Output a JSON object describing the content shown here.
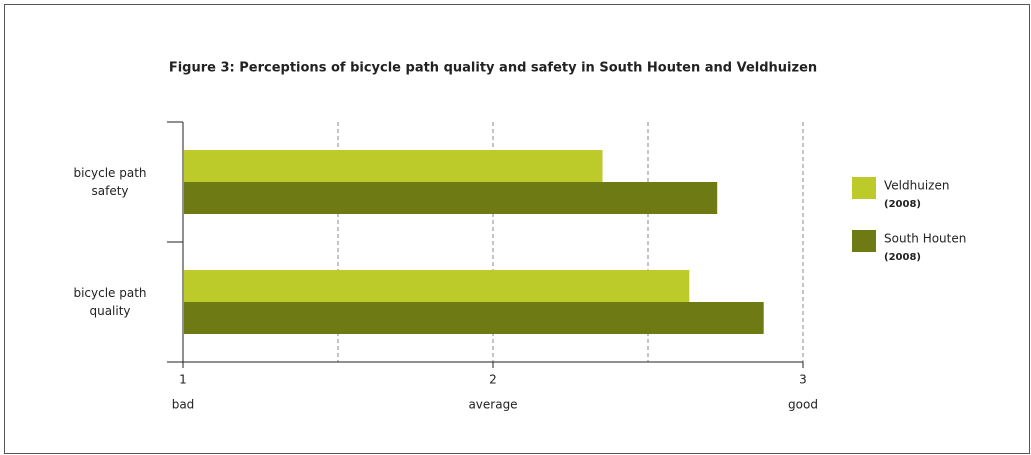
{
  "chart_data": {
    "type": "hbar",
    "title": "Figure 3: Perceptions of bicycle path quality and safety in South Houten and Veldhuizen",
    "categories": [
      "bicycle path safety",
      "bicycle path quality"
    ],
    "series": [
      {
        "name": "Veldhuizen",
        "note": "(2008)",
        "color": "#bccb2a",
        "values": [
          2.35,
          2.63
        ]
      },
      {
        "name": "South Houten",
        "note": "(2008)",
        "color": "#6e7b14",
        "values": [
          2.72,
          2.87
        ]
      }
    ],
    "xlim": [
      1,
      3
    ],
    "xticks": [
      1,
      2,
      3
    ],
    "xtick_sublabels": [
      "bad",
      "average",
      "good"
    ],
    "xgrid": [
      1.5,
      2,
      2.5,
      3
    ],
    "grid": true,
    "legend": "right"
  }
}
